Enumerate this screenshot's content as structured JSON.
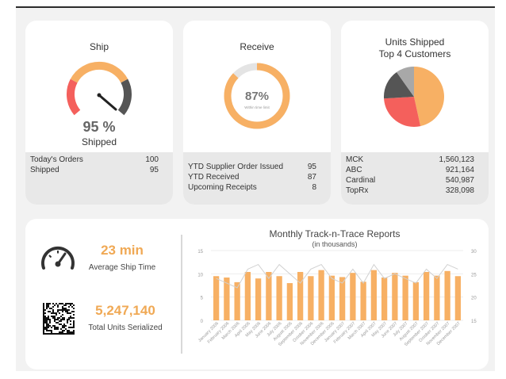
{
  "ship": {
    "title": "Ship",
    "percent_label": "95 %",
    "percent_value": 95,
    "caption": "Shipped",
    "stats": [
      {
        "label": "Today's Orders",
        "value": "100"
      },
      {
        "label": "Shipped",
        "value": "95"
      }
    ]
  },
  "receive": {
    "title": "Receive",
    "percent_label": "87%",
    "percent_value": 87,
    "inner_caption": "Within time limit",
    "stats": [
      {
        "label": "YTD Supplier Order Issued",
        "value": "95"
      },
      {
        "label": "YTD Received",
        "value": "87"
      },
      {
        "label": "Upcoming Receipts",
        "value": "8"
      }
    ]
  },
  "units": {
    "title_line1": "Units Shipped",
    "title_line2": "Top 4 Customers",
    "stats": [
      {
        "label": "MCK",
        "value": "1,560,123"
      },
      {
        "label": "ABC",
        "value": "921,164"
      },
      {
        "label": "Cardinal",
        "value": "540,987"
      },
      {
        "label": "TopRx",
        "value": "328,098"
      }
    ]
  },
  "metrics": {
    "ship_time_value": "23 min",
    "ship_time_label": "Average Ship Time",
    "serialized_value": "5,247,140",
    "serialized_label": "Total Units Serialized"
  },
  "colors": {
    "orange": "#f7b064",
    "red": "#f4605c",
    "dark": "#555555",
    "grey": "#a8a8a8"
  },
  "chart_data": [
    {
      "type": "pie",
      "title": "Units Shipped Top 4 Customers",
      "categories": [
        "MCK",
        "ABC",
        "Cardinal",
        "TopRx"
      ],
      "values": [
        1560123,
        921164,
        540987,
        328098
      ],
      "colors": [
        "#f7b064",
        "#f4605c",
        "#555555",
        "#a8a8a8"
      ]
    },
    {
      "type": "bar",
      "title": "Monthly Track-n-Trace Reports",
      "subtitle": "(in thousands)",
      "categories": [
        "January 2006",
        "February 2006",
        "March 2006",
        "April 2006",
        "May 2006",
        "June 2006",
        "July 2006",
        "August 2006",
        "September 2006",
        "October 2006",
        "November 2006",
        "December 2006",
        "January 2007",
        "February 2007",
        "March 2007",
        "April 2007",
        "May 2007",
        "June 2007",
        "July 2007",
        "August 2007",
        "September 2007",
        "October 2007",
        "November 2007",
        "December 2007"
      ],
      "values": [
        9.5,
        9.2,
        8.2,
        10.4,
        9.0,
        10.4,
        9.5,
        8.0,
        10.4,
        9.5,
        10.8,
        9.6,
        9.3,
        10.2,
        8.3,
        10.8,
        9.2,
        10.2,
        9.6,
        8.2,
        10.4,
        9.6,
        10.6,
        9.5
      ],
      "line_values": [
        24,
        23,
        22,
        26,
        27,
        24,
        27,
        25,
        23,
        26,
        27,
        24,
        23,
        26,
        23,
        27,
        24,
        25,
        24,
        23,
        26,
        24,
        27,
        26
      ],
      "ylim_left": [
        0,
        15
      ],
      "ylim_right": [
        15,
        30
      ],
      "yticks_left": [
        "15",
        "10",
        "5",
        "0"
      ],
      "yticks_right": [
        "30",
        "25",
        "20",
        "15"
      ]
    }
  ]
}
